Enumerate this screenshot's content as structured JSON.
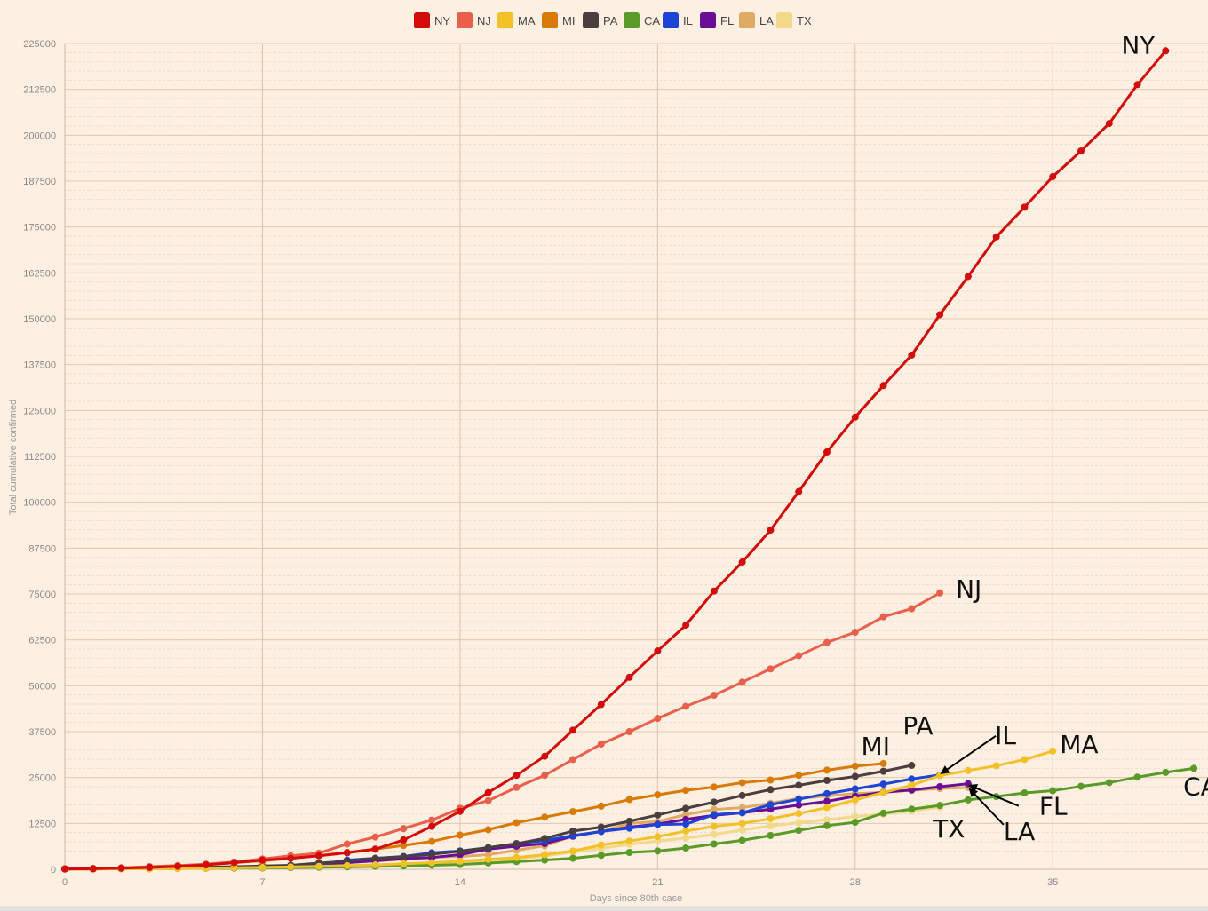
{
  "chart_data": {
    "type": "line",
    "xlabel": "Days since 80th case",
    "ylabel": "Total cumulative confirmed",
    "xlim": [
      0,
      40.5
    ],
    "ylim": [
      0,
      225000
    ],
    "x_ticks": [
      0,
      7,
      14,
      21,
      28,
      35
    ],
    "y_ticks": [
      0,
      12500,
      25000,
      37500,
      50000,
      62500,
      75000,
      87500,
      100000,
      112500,
      125000,
      137500,
      150000,
      162500,
      175000,
      187500,
      200000,
      212500,
      225000
    ],
    "grid": true,
    "legend_position": "top-center",
    "series": [
      {
        "name": "NY",
        "color": "#d30b0b",
        "values": [
          100,
          150,
          300,
          500,
          800,
          1200,
          1800,
          2500,
          3000,
          3700,
          4500,
          5500,
          8000,
          11700,
          15800,
          20900,
          25600,
          30800,
          37900,
          44900,
          52300,
          59500,
          66500,
          75800,
          83700,
          92400,
          102900,
          113700,
          123200,
          131800,
          140100,
          151100,
          161500,
          172300,
          180400,
          188700,
          195700,
          203200,
          213800,
          223000
        ]
      },
      {
        "name": "NJ",
        "color": "#ea5f4b",
        "values": [
          100,
          200,
          400,
          700,
          1000,
          1400,
          2000,
          2800,
          3700,
          4400,
          6900,
          8800,
          11100,
          13400,
          16600,
          18700,
          22300,
          25600,
          29900,
          34100,
          37500,
          41100,
          44400,
          47400,
          51000,
          54600,
          58200,
          61800,
          64600,
          68800,
          71000,
          75300
        ]
      },
      {
        "name": "MA",
        "color": "#f2c128",
        "values": [
          50,
          80,
          100,
          150,
          200,
          300,
          400,
          500,
          650,
          800,
          1000,
          1200,
          1500,
          1800,
          2200,
          2700,
          3200,
          4000,
          5000,
          6600,
          7700,
          8900,
          10400,
          11700,
          12500,
          13800,
          15200,
          16800,
          18900,
          20900,
          22900,
          25500,
          26900,
          28200,
          29900,
          32200
        ]
      },
      {
        "name": "MI",
        "color": "#d97a07",
        "values": [
          100,
          200,
          400,
          700,
          1000,
          1300,
          1800,
          2300,
          3000,
          3700,
          4600,
          5500,
          6500,
          7600,
          9300,
          10800,
          12700,
          14200,
          15700,
          17200,
          19000,
          20300,
          21500,
          22400,
          23600,
          24300,
          25600,
          27000,
          28100,
          28800
        ]
      },
      {
        "name": "PA",
        "color": "#4b3e3e",
        "values": [
          80,
          150,
          200,
          300,
          400,
          550,
          700,
          900,
          1100,
          1700,
          2200,
          3000,
          3400,
          4100,
          4900,
          5900,
          7000,
          8400,
          10400,
          11500,
          13100,
          14800,
          16600,
          18300,
          20100,
          21700,
          22900,
          24200,
          25300,
          26700,
          28300
        ]
      },
      {
        "name": "CA",
        "color": "#5a9a28",
        "values": [
          80,
          100,
          120,
          150,
          200,
          250,
          300,
          350,
          450,
          550,
          650,
          800,
          900,
          1100,
          1300,
          1700,
          2100,
          2500,
          3000,
          3800,
          4600,
          5000,
          5800,
          6900,
          7900,
          9200,
          10600,
          11900,
          12800,
          15300,
          16400,
          17400,
          18900,
          19800,
          20800,
          21400,
          22600,
          23600,
          25100,
          26400,
          27500
        ]
      },
      {
        "name": "IL",
        "color": "#1c45d6",
        "values": [
          80,
          120,
          150,
          200,
          300,
          400,
          600,
          800,
          1000,
          1300,
          2500,
          3000,
          3500,
          4500,
          5000,
          5900,
          7000,
          7800,
          9200,
          10300,
          11200,
          12200,
          12300,
          14900,
          15400,
          17600,
          19100,
          20600,
          21900,
          23200,
          24600,
          25700
        ]
      },
      {
        "name": "FL",
        "color": "#6a0e96",
        "values": [
          80,
          100,
          150,
          200,
          300,
          400,
          550,
          750,
          1000,
          1300,
          1800,
          2300,
          2900,
          3200,
          4000,
          5500,
          6300,
          7000,
          9000,
          10300,
          11500,
          12300,
          13600,
          14700,
          15400,
          16400,
          17500,
          18500,
          19900,
          21000,
          21600,
          22500,
          23300
        ]
      },
      {
        "name": "LA",
        "color": "#deaa64",
        "values": [
          80,
          120,
          160,
          250,
          350,
          480,
          600,
          800,
          1000,
          1400,
          1800,
          2300,
          2700,
          3300,
          3500,
          4000,
          5200,
          6400,
          9100,
          10300,
          12500,
          13000,
          14900,
          16300,
          16800,
          18000,
          19300,
          20000,
          20600,
          21000,
          21500,
          22000,
          22300
        ]
      },
      {
        "name": "TX",
        "color": "#f2d98a",
        "values": [
          80,
          100,
          120,
          160,
          200,
          260,
          330,
          400,
          500,
          620,
          750,
          900,
          1100,
          1400,
          1800,
          2200,
          2800,
          3600,
          4700,
          5700,
          6800,
          7700,
          8500,
          9500,
          10700,
          11800,
          12700,
          13500,
          14400,
          15000,
          15900,
          16900
        ]
      }
    ],
    "annotations": [
      {
        "text": "NY",
        "series": "NY"
      },
      {
        "text": "NJ",
        "series": "NJ"
      },
      {
        "text": "MI",
        "series": "MI"
      },
      {
        "text": "PA",
        "series": "PA"
      },
      {
        "text": "IL",
        "series": "IL",
        "arrow": true
      },
      {
        "text": "MA",
        "series": "MA"
      },
      {
        "text": "CA",
        "series": "CA"
      },
      {
        "text": "FL",
        "series": "FL",
        "arrow": true
      },
      {
        "text": "LA",
        "series": "LA",
        "arrow": true
      },
      {
        "text": "TX",
        "series": "TX"
      }
    ]
  }
}
